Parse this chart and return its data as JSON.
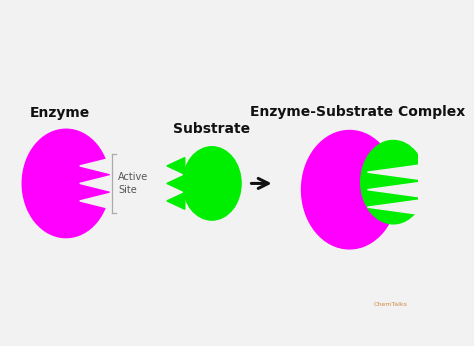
{
  "bg_color": "#f2f2f2",
  "magenta": "#ff00ff",
  "green": "#00ee00",
  "black": "#111111",
  "white": "#f2f2f2",
  "label_enzyme": "Enzyme",
  "label_substrate": "Substrate",
  "label_complex": "Enzyme-Substrate Complex",
  "label_active_site": "Active\nSite",
  "figsize": [
    4.74,
    3.46
  ],
  "dpi": 100,
  "title_fontsize": 10,
  "active_site_fontsize": 7
}
